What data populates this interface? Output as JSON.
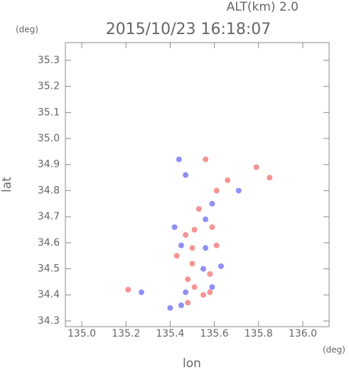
{
  "chart_data": {
    "type": "scatter",
    "title": "2015/10/23 16:18:07",
    "annotation": "ALT(km) 2.0",
    "x_label": "lon",
    "y_label": "lat",
    "x_unit": "(deg)",
    "y_unit": "(deg)",
    "xlim": [
      134.926,
      136.119
    ],
    "ylim": [
      34.278,
      35.368
    ],
    "xticks": [
      {
        "value": 135,
        "label": "135.0"
      },
      135.2,
      135.4,
      135.6,
      135.8,
      {
        "value": 136,
        "label": "136.0"
      }
    ],
    "yticks": [
      34.3,
      34.4,
      34.5,
      34.6,
      34.7,
      34.8,
      34.9,
      {
        "value": 35,
        "label": "35.0"
      },
      35.1,
      35.2,
      35.3
    ],
    "x": [
      135.44,
      135.56,
      135.47,
      135.66,
      135.61,
      135.71,
      135.79,
      135.85,
      135.59,
      135.42,
      135.47,
      135.51,
      135.59,
      135.45,
      135.5,
      135.56,
      135.61,
      135.5,
      135.55,
      135.58,
      135.48,
      135.51,
      135.58,
      135.59,
      135.21,
      135.4,
      135.45,
      135.48,
      135.55,
      135.27,
      135.53,
      135.56,
      135.43,
      135.63,
      135.47
    ],
    "values": [
      34.92,
      34.92,
      34.86,
      34.84,
      34.8,
      34.8,
      34.89,
      34.85,
      34.75,
      34.66,
      34.63,
      34.65,
      34.66,
      34.59,
      34.58,
      34.58,
      34.59,
      34.52,
      34.5,
      34.48,
      34.46,
      34.43,
      34.41,
      34.43,
      34.42,
      34.35,
      34.36,
      34.37,
      34.4,
      34.41,
      34.73,
      34.69,
      34.55,
      34.51,
      34.41
    ],
    "colors": [
      "#6a6af0",
      "#f07070",
      "#6a6af0",
      "#f07070",
      "#f07070",
      "#6a6af0",
      "#f07070",
      "#f07070",
      "#6a6af0",
      "#6a6af0",
      "#f07070",
      "#f07070",
      "#f07070",
      "#6a6af0",
      "#f07070",
      "#6a6af0",
      "#f07070",
      "#f07070",
      "#6a6af0",
      "#f07070",
      "#f07070",
      "#f07070",
      "#f07070",
      "#6a6af0",
      "#f07070",
      "#6a6af0",
      "#6a6af0",
      "#f07070",
      "#f07070",
      "#6a6af0",
      "#f07070",
      "#6a6af0",
      "#f07070",
      "#6a6af0",
      "#6a6af0"
    ]
  }
}
